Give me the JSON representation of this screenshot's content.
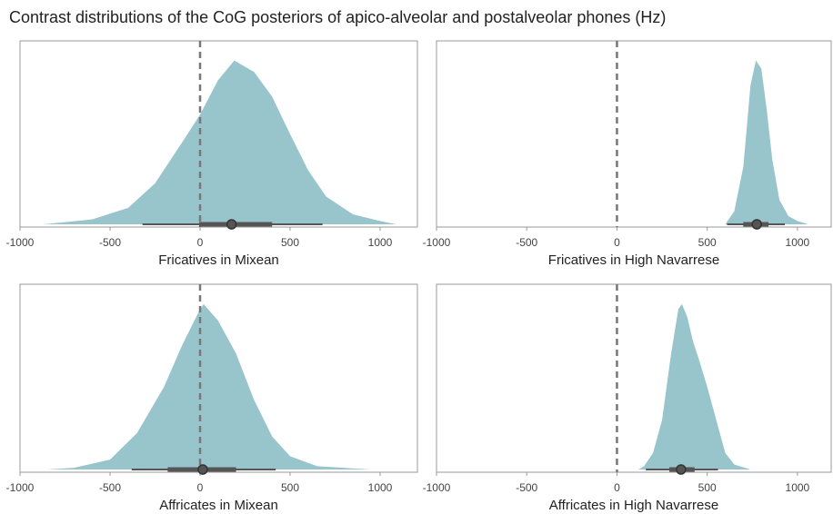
{
  "title": "Contrast distributions of the CoG posteriors of apico-alveolar and postalveolar phones (Hz)",
  "chart_data": [
    {
      "type": "density",
      "xlabel": "Fricatives in Mixean",
      "color": "#98c4cc",
      "interval_color": "#555555",
      "refline": 0,
      "xlim": [
        -1000,
        1207
      ],
      "xticks": [
        -1000,
        -500,
        0,
        500,
        1000
      ],
      "ylim": [
        0,
        1.12
      ],
      "x": [
        -870,
        -600,
        -400,
        -250,
        -100,
        0,
        100,
        190,
        300,
        400,
        500,
        600,
        700,
        850,
        1000,
        1090
      ],
      "density": [
        0,
        0.03,
        0.1,
        0.25,
        0.5,
        0.67,
        0.88,
        1.0,
        0.93,
        0.78,
        0.55,
        0.33,
        0.17,
        0.06,
        0.02,
        0
      ],
      "median": 175,
      "interval_66": [
        -5,
        400
      ],
      "interval_95": [
        -320,
        680
      ]
    },
    {
      "type": "density",
      "xlabel": "Fricatives in High Navarrese",
      "color": "#98c4cc",
      "interval_color": "#555555",
      "refline": 0,
      "xlim": [
        -1000,
        1187
      ],
      "xticks": [
        -1000,
        -500,
        0,
        500,
        1000
      ],
      "ylim": [
        0,
        1.12
      ],
      "x": [
        600,
        650,
        700,
        740,
        770,
        800,
        830,
        860,
        900,
        950,
        1000,
        1060
      ],
      "density": [
        0,
        0.08,
        0.35,
        0.85,
        1.0,
        0.95,
        0.7,
        0.4,
        0.15,
        0.05,
        0.02,
        0
      ],
      "median": 775,
      "interval_66": [
        700,
        840
      ],
      "interval_95": [
        610,
        930
      ]
    },
    {
      "type": "density",
      "xlabel": "Affricates in Mixean",
      "color": "#98c4cc",
      "interval_color": "#555555",
      "refline": 0,
      "xlim": [
        -1000,
        1207
      ],
      "xticks": [
        -1000,
        -500,
        0,
        500,
        1000
      ],
      "ylim": [
        0,
        1.12
      ],
      "x": [
        -850,
        -700,
        -500,
        -350,
        -200,
        -100,
        0,
        20,
        100,
        200,
        300,
        400,
        500,
        650,
        800,
        950
      ],
      "density": [
        0,
        0.01,
        0.06,
        0.22,
        0.5,
        0.75,
        0.97,
        1.0,
        0.9,
        0.7,
        0.42,
        0.2,
        0.08,
        0.02,
        0.01,
        0
      ],
      "median": 15,
      "interval_66": [
        -180,
        200
      ],
      "interval_95": [
        -380,
        420
      ]
    },
    {
      "type": "density",
      "xlabel": "Affricates in High Navarrese",
      "color": "#98c4cc",
      "interval_color": "#555555",
      "refline": 0,
      "xlim": [
        -1000,
        1187
      ],
      "xticks": [
        -1000,
        -500,
        0,
        500,
        1000
      ],
      "ylim": [
        0,
        1.12
      ],
      "x": [
        120,
        150,
        200,
        250,
        300,
        340,
        360,
        390,
        420,
        450,
        500,
        550,
        600,
        650,
        740
      ],
      "density": [
        0,
        0.02,
        0.1,
        0.3,
        0.7,
        0.97,
        1.0,
        0.92,
        0.78,
        0.68,
        0.5,
        0.3,
        0.1,
        0.03,
        0
      ],
      "median": 355,
      "interval_66": [
        290,
        430
      ],
      "interval_95": [
        160,
        560
      ]
    }
  ]
}
